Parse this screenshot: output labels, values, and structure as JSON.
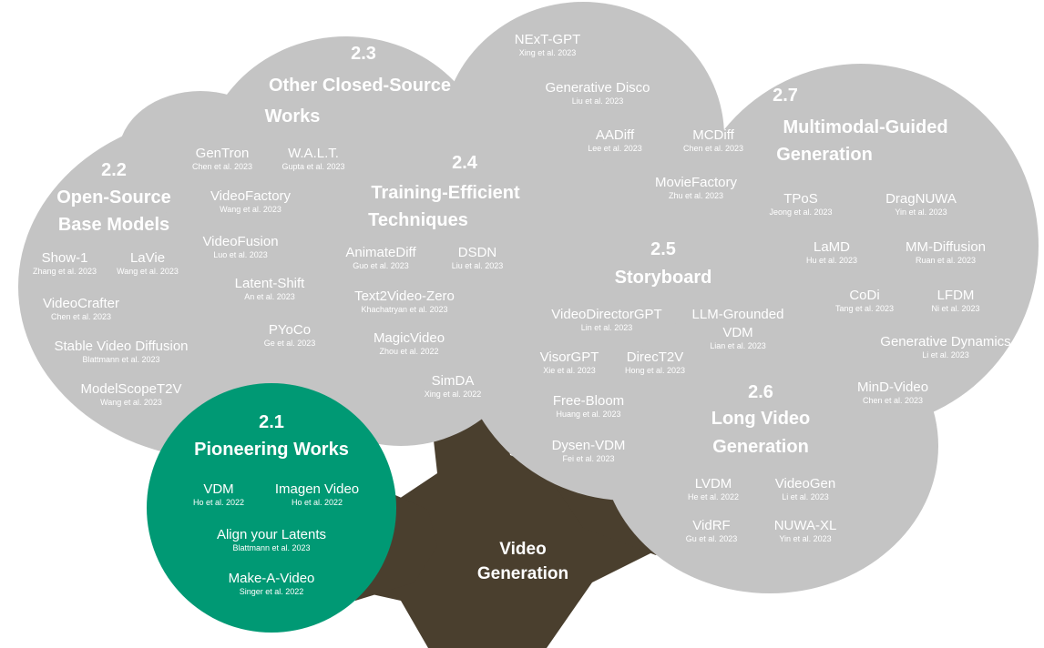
{
  "colors": {
    "foliage": "#c4c4c4",
    "trunk": "#4a3f2e",
    "pioneer": "#009974",
    "text": "#ffffff"
  },
  "root": {
    "line1": "Video",
    "line2": "Generation"
  },
  "sections": [
    {
      "id": "s21",
      "number": "2.1",
      "title_lines": [
        "Pioneering Works"
      ],
      "works": [
        {
          "name": "VDM",
          "authors": "Ho et al. 2022"
        },
        {
          "name": "Imagen Video",
          "authors": "Ho et al. 2022"
        },
        {
          "name": "Align your Latents",
          "authors": "Blattmann et al. 2023"
        },
        {
          "name": "Make-A-Video",
          "authors": "Singer et al. 2022"
        }
      ]
    },
    {
      "id": "s22",
      "number": "2.2",
      "title_lines": [
        "Open-Source",
        "Base Models"
      ],
      "works": [
        {
          "name": "Show-1",
          "authors": "Zhang et al. 2023"
        },
        {
          "name": "LaVie",
          "authors": "Wang et al. 2023"
        },
        {
          "name": "VideoCrafter",
          "authors": "Chen et al. 2023"
        },
        {
          "name": "Stable Video Diffusion",
          "authors": "Blattmann et al. 2023"
        },
        {
          "name": "ModelScopeT2V",
          "authors": "Wang et al. 2023"
        }
      ]
    },
    {
      "id": "s23",
      "number": "2.3",
      "title_lines": [
        "Other Closed-Source",
        "Works"
      ],
      "works": [
        {
          "name": "GenTron",
          "authors": "Chen et al. 2023"
        },
        {
          "name": "W.A.L.T.",
          "authors": "Gupta et al. 2023"
        },
        {
          "name": "VideoFactory",
          "authors": "Wang et al. 2023"
        },
        {
          "name": "VideoFusion",
          "authors": "Luo et al. 2023"
        },
        {
          "name": "Latent-Shift",
          "authors": "An et al. 2023"
        },
        {
          "name": "PYoCo",
          "authors": "Ge et al. 2023"
        }
      ]
    },
    {
      "id": "s24",
      "number": "2.4",
      "title_lines": [
        "Training-Efficient",
        "Techniques"
      ],
      "works": [
        {
          "name": "AnimateDiff",
          "authors": "Guo et al. 2023"
        },
        {
          "name": "DSDN",
          "authors": "Liu et al. 2023"
        },
        {
          "name": "Text2Video-Zero",
          "authors": "Khachatryan et al. 2023"
        },
        {
          "name": "MagicVideo",
          "authors": "Zhou et al. 2022"
        },
        {
          "name": "SimDA",
          "authors": "Xing et al. 2022"
        }
      ]
    },
    {
      "id": "s25",
      "number": "2.5",
      "title_lines": [
        "Storyboard"
      ],
      "works": [
        {
          "name": "VideoDirectorGPT",
          "authors": "Lin et al. 2023"
        },
        {
          "name": "LLM-Grounded VDM",
          "name_lines": [
            "LLM-Grounded",
            "VDM"
          ],
          "authors": "Lian et al. 2023"
        },
        {
          "name": "VisorGPT",
          "authors": "Xie et al. 2023"
        },
        {
          "name": "DirecT2V",
          "authors": "Hong et al. 2023"
        },
        {
          "name": "Free-Bloom",
          "authors": "Huang et al. 2023"
        },
        {
          "name": "Dysen-VDM",
          "authors": "Fei et al. 2023"
        }
      ]
    },
    {
      "id": "s26",
      "number": "2.6",
      "title_lines": [
        "Long Video",
        "Generation"
      ],
      "works": [
        {
          "name": "LVDM",
          "authors": "He et al. 2022"
        },
        {
          "name": "VideoGen",
          "authors": "Li et al. 2023"
        },
        {
          "name": "VidRF",
          "authors": "Gu et al. 2023"
        },
        {
          "name": "NUWA-XL",
          "authors": "Yin et al. 2023"
        }
      ]
    },
    {
      "id": "s27",
      "number": "2.7",
      "title_lines": [
        "Multimodal-Guided",
        "Generation"
      ],
      "works": [
        {
          "name": "NExT-GPT",
          "authors": "Xing et al. 2023"
        },
        {
          "name": "Generative Disco",
          "authors": "Liu et al. 2023"
        },
        {
          "name": "AADiff",
          "authors": "Lee et al. 2023"
        },
        {
          "name": "MCDiff",
          "authors": "Chen et al. 2023"
        },
        {
          "name": "MovieFactory",
          "authors": "Zhu et al. 2023"
        },
        {
          "name": "TPoS",
          "authors": "Jeong et al. 2023"
        },
        {
          "name": "DragNUWA",
          "authors": "Yin et al. 2023"
        },
        {
          "name": "LaMD",
          "authors": "Hu et al. 2023"
        },
        {
          "name": "MM-Diffusion",
          "authors": "Ruan et al. 2023"
        },
        {
          "name": "CoDi",
          "authors": "Tang et al. 2023"
        },
        {
          "name": "LFDM",
          "authors": "Ni et al. 2023"
        },
        {
          "name": "Generative Dynamics",
          "authors": "Li et al. 2023"
        },
        {
          "name": "MinD-Video",
          "authors": "Chen et al. 2023"
        }
      ]
    }
  ]
}
